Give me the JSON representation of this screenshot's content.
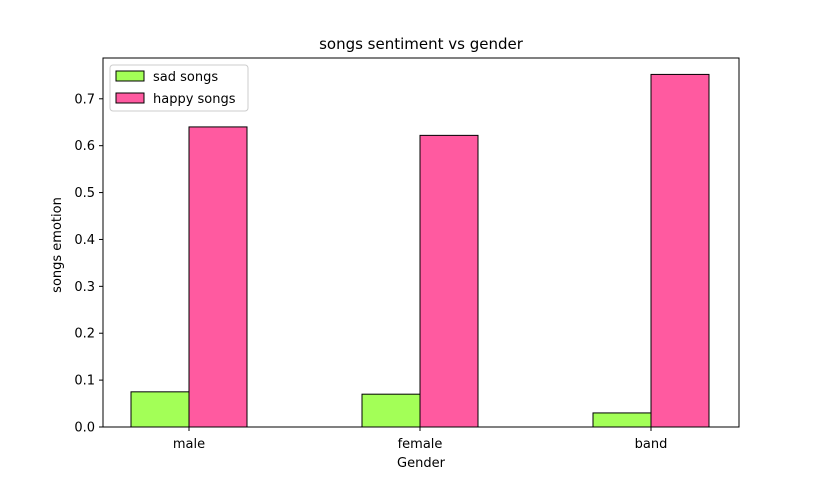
{
  "chart_data": {
    "type": "bar",
    "title": "songs sentiment vs gender",
    "xlabel": "Gender",
    "ylabel": "songs emotion",
    "categories": [
      "male",
      "female",
      "band"
    ],
    "series": [
      {
        "name": "sad songs",
        "values": [
          0.075,
          0.07,
          0.03
        ],
        "color": "#a3ff57"
      },
      {
        "name": "happy songs",
        "values": [
          0.64,
          0.622,
          0.752
        ],
        "color": "#ff5aa0"
      }
    ],
    "ylim": [
      0,
      0.787
    ],
    "yticks": [
      "0.0",
      "0.1",
      "0.2",
      "0.3",
      "0.4",
      "0.5",
      "0.6",
      "0.7"
    ],
    "grid": false,
    "legend_position": "upper-left"
  }
}
